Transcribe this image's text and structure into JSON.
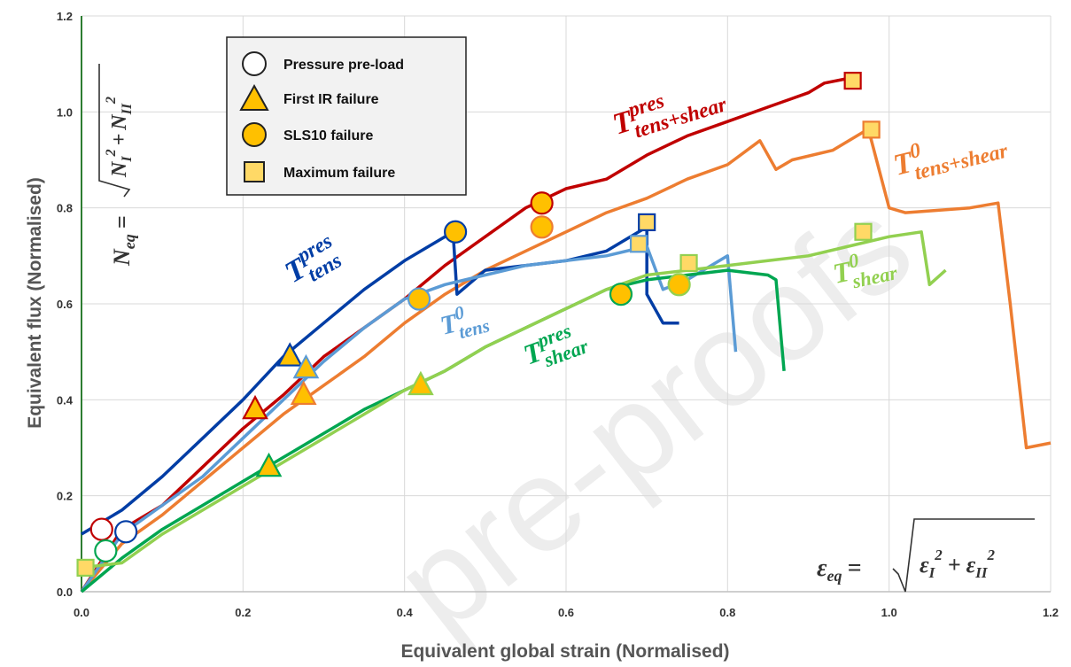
{
  "chart_data": {
    "type": "line",
    "xlabel": "Equivalent global strain (Normalised)",
    "ylabel": "Equivalent flux (Normalised)",
    "xlim": [
      0,
      1.2
    ],
    "ylim": [
      0,
      1.2
    ],
    "xticks": [
      "0.0",
      "0.2",
      "0.4",
      "0.6",
      "0.8",
      "1.0",
      "1.2"
    ],
    "yticks": [
      "0.0",
      "0.2",
      "0.4",
      "0.6",
      "0.8",
      "1.0",
      "1.2"
    ],
    "grid": true,
    "watermark": "pre-proofs",
    "formula_y": {
      "main": "N",
      "sub": "eq",
      "terms": [
        "N",
        "I",
        "2",
        "+",
        "N",
        "II",
        "2"
      ]
    },
    "formula_x": {
      "main": "ε",
      "sub": "eq",
      "terms": [
        "ε",
        "I",
        "2",
        "+",
        "ε",
        "II",
        "2"
      ]
    },
    "legend": {
      "position": "top-left",
      "items": [
        {
          "label": "Pressure pre-load",
          "marker": "circle-open"
        },
        {
          "label": "First IR failure",
          "marker": "triangle"
        },
        {
          "label": "SLS10 failure",
          "marker": "circle"
        },
        {
          "label": "Maximum failure",
          "marker": "square"
        }
      ]
    },
    "series": [
      {
        "name": "T",
        "sup": "pres",
        "sub": "tens+shear",
        "color": "#c00000",
        "x": [
          0,
          0.05,
          0.1,
          0.15,
          0.2,
          0.25,
          0.3,
          0.35,
          0.4,
          0.45,
          0.5,
          0.55,
          0.6,
          0.65,
          0.7,
          0.75,
          0.8,
          0.85,
          0.9,
          0.92,
          0.95,
          0.96
        ],
        "y": [
          0,
          0.13,
          0.18,
          0.26,
          0.34,
          0.41,
          0.49,
          0.55,
          0.61,
          0.68,
          0.74,
          0.8,
          0.84,
          0.86,
          0.91,
          0.95,
          0.98,
          1.01,
          1.04,
          1.06,
          1.07,
          1.07
        ],
        "markers": [
          {
            "type": "circle-open",
            "x": 0.025,
            "y": 0.13
          },
          {
            "type": "triangle",
            "x": 0.215,
            "y": 0.38
          },
          {
            "type": "circle",
            "x": 0.57,
            "y": 0.81
          },
          {
            "type": "square",
            "x": 0.955,
            "y": 1.065
          }
        ]
      },
      {
        "name": "T",
        "sup": "0",
        "sub": "tens+shear",
        "color": "#ed7d31",
        "x": [
          0,
          0.05,
          0.1,
          0.15,
          0.2,
          0.25,
          0.3,
          0.35,
          0.4,
          0.45,
          0.5,
          0.55,
          0.6,
          0.65,
          0.7,
          0.75,
          0.8,
          0.84,
          0.86,
          0.88,
          0.93,
          0.97,
          0.975,
          1.0,
          1.02,
          1.1,
          1.135,
          1.15,
          1.17,
          1.2
        ],
        "y": [
          0,
          0.1,
          0.16,
          0.23,
          0.3,
          0.37,
          0.43,
          0.49,
          0.56,
          0.62,
          0.67,
          0.71,
          0.75,
          0.79,
          0.82,
          0.86,
          0.89,
          0.94,
          0.88,
          0.9,
          0.92,
          0.96,
          0.96,
          0.8,
          0.79,
          0.8,
          0.81,
          0.6,
          0.3,
          0.31
        ],
        "markers": [
          {
            "type": "triangle",
            "x": 0.275,
            "y": 0.41
          },
          {
            "type": "circle",
            "x": 0.57,
            "y": 0.76
          },
          {
            "type": "square",
            "x": 0.978,
            "y": 0.963
          }
        ]
      },
      {
        "name": "T",
        "sup": "pres",
        "sub": "tens",
        "color": "#003da5",
        "x": [
          0,
          0.05,
          0.1,
          0.15,
          0.2,
          0.25,
          0.3,
          0.35,
          0.4,
          0.45,
          0.46,
          0.465,
          0.5,
          0.6,
          0.65,
          0.7,
          0.7,
          0.72,
          0.74
        ],
        "y": [
          0.12,
          0.17,
          0.24,
          0.32,
          0.4,
          0.49,
          0.56,
          0.63,
          0.69,
          0.74,
          0.75,
          0.62,
          0.67,
          0.69,
          0.71,
          0.76,
          0.62,
          0.56,
          0.56
        ],
        "markers": [
          {
            "type": "circle-open",
            "x": 0.055,
            "y": 0.125
          },
          {
            "type": "triangle",
            "x": 0.258,
            "y": 0.49
          },
          {
            "type": "circle",
            "x": 0.463,
            "y": 0.75
          },
          {
            "type": "square",
            "x": 0.7,
            "y": 0.77
          }
        ]
      },
      {
        "name": "T",
        "sup": "0",
        "sub": "tens",
        "color": "#5b9bd5",
        "x": [
          0,
          0.05,
          0.1,
          0.15,
          0.2,
          0.25,
          0.3,
          0.35,
          0.4,
          0.45,
          0.5,
          0.55,
          0.6,
          0.65,
          0.7,
          0.72,
          0.75,
          0.8,
          0.81
        ],
        "y": [
          0,
          0.12,
          0.18,
          0.24,
          0.32,
          0.4,
          0.48,
          0.55,
          0.61,
          0.64,
          0.66,
          0.68,
          0.69,
          0.7,
          0.72,
          0.63,
          0.65,
          0.7,
          0.5
        ],
        "markers": [
          {
            "type": "triangle",
            "x": 0.278,
            "y": 0.465
          },
          {
            "type": "circle",
            "x": 0.418,
            "y": 0.61
          },
          {
            "type": "square",
            "x": 0.69,
            "y": 0.725
          }
        ]
      },
      {
        "name": "T",
        "sup": "pres",
        "sub": "shear",
        "color": "#00a651",
        "x": [
          0,
          0.05,
          0.1,
          0.15,
          0.2,
          0.25,
          0.3,
          0.35,
          0.4,
          0.45,
          0.5,
          0.55,
          0.6,
          0.65,
          0.7,
          0.75,
          0.8,
          0.85,
          0.86,
          0.87
        ],
        "y": [
          0,
          0.07,
          0.13,
          0.18,
          0.23,
          0.28,
          0.33,
          0.38,
          0.42,
          0.46,
          0.51,
          0.55,
          0.59,
          0.63,
          0.65,
          0.66,
          0.67,
          0.66,
          0.65,
          0.46
        ],
        "markers": [
          {
            "type": "circle-open",
            "x": 0.03,
            "y": 0.085
          },
          {
            "type": "triangle",
            "x": 0.232,
            "y": 0.26
          },
          {
            "type": "circle",
            "x": 0.668,
            "y": 0.62
          }
        ]
      },
      {
        "name": "T",
        "sup": "0",
        "sub": "shear",
        "color": "#92d050",
        "x": [
          0,
          0.05,
          0.1,
          0.15,
          0.2,
          0.25,
          0.3,
          0.35,
          0.4,
          0.45,
          0.5,
          0.55,
          0.6,
          0.65,
          0.7,
          0.75,
          0.8,
          0.85,
          0.9,
          0.95,
          1.0,
          1.04,
          1.05,
          1.07
        ],
        "y": [
          0.05,
          0.06,
          0.12,
          0.17,
          0.22,
          0.27,
          0.32,
          0.37,
          0.42,
          0.46,
          0.51,
          0.55,
          0.59,
          0.63,
          0.66,
          0.67,
          0.68,
          0.69,
          0.7,
          0.72,
          0.74,
          0.75,
          0.64,
          0.67
        ],
        "markers": [
          {
            "type": "square",
            "x": 0.005,
            "y": 0.05
          },
          {
            "type": "triangle",
            "x": 0.42,
            "y": 0.43
          },
          {
            "type": "circle",
            "x": 0.74,
            "y": 0.64
          },
          {
            "type": "square",
            "x": 0.752,
            "y": 0.685
          },
          {
            "type": "square",
            "x": 0.968,
            "y": 0.75
          }
        ]
      }
    ]
  }
}
